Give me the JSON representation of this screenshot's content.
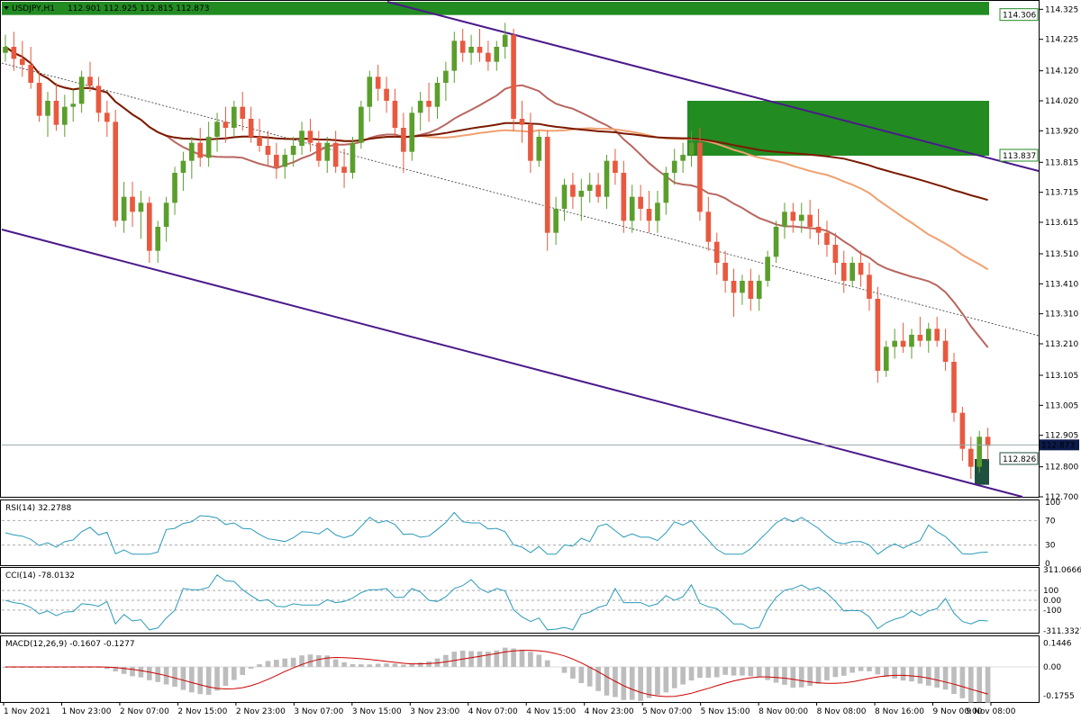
{
  "header": {
    "symbol": "USDJPY,H1",
    "ohlc": "112.901 112.925 112.815 112.873"
  },
  "colors": {
    "bull": "#5b9e2c",
    "bear": "#e8593f",
    "zone": "#228b22",
    "channel": "#4b1a8a",
    "ma_fast": "#b8665f",
    "ma_mid": "#f0a070",
    "ma_slow": "#7a1a00",
    "indicator": "#2a9ab8",
    "macd_signal": "#cc0000",
    "hist": "#bdbdbd"
  },
  "price_axis": {
    "ticks": [
      "114.325",
      "114.225",
      "114.120",
      "114.020",
      "113.920",
      "113.815",
      "113.715",
      "113.615",
      "113.510",
      "113.410",
      "113.310",
      "113.210",
      "113.105",
      "113.005",
      "112.905",
      "112.800",
      "112.700"
    ],
    "labels": {
      "zone_top": "114.306",
      "zone_mid": "113.837",
      "current": "112.873",
      "zone_low": "112.826"
    }
  },
  "x_axis": {
    "labels": [
      "1 Nov 2021",
      "1 Nov 23:00",
      "2 Nov 07:00",
      "2 Nov 15:00",
      "2 Nov 23:00",
      "3 Nov 07:00",
      "3 Nov 15:00",
      "3 Nov 23:00",
      "4 Nov 07:00",
      "4 Nov 15:00",
      "4 Nov 23:00",
      "5 Nov 07:00",
      "5 Nov 15:00",
      "8 Nov 00:00",
      "8 Nov 08:00",
      "8 Nov 16:00",
      "9 Nov 00:00",
      "9 Nov 08:00"
    ]
  },
  "rsi": {
    "label": "RSI(14) 32.2788",
    "levels": [
      "100",
      "70",
      "30",
      "0"
    ]
  },
  "cci": {
    "label": "CCI(14) -78.0132",
    "levels": [
      "311.0666",
      "100",
      "0.00",
      "-100",
      "-311.3327"
    ]
  },
  "macd": {
    "label": "MACD(12,26,9) -0.1607 -0.1277",
    "levels": [
      "0.1446",
      "0.00",
      "-0.1755"
    ]
  },
  "chart_data": {
    "type": "candlestick",
    "symbol": "USDJPY",
    "ylim": [
      112.7,
      114.35
    ],
    "candles": [
      [
        114.18,
        114.24,
        114.15,
        114.2
      ],
      [
        114.2,
        114.25,
        114.12,
        114.16
      ],
      [
        114.16,
        114.22,
        114.1,
        114.14
      ],
      [
        114.14,
        114.2,
        114.06,
        114.08
      ],
      [
        114.08,
        114.12,
        113.95,
        113.97
      ],
      [
        113.97,
        114.05,
        113.9,
        114.02
      ],
      [
        114.02,
        114.08,
        113.92,
        113.94
      ],
      [
        113.94,
        114.04,
        113.9,
        114.0
      ],
      [
        114.0,
        114.06,
        113.95,
        114.01
      ],
      [
        114.01,
        114.12,
        113.98,
        114.1
      ],
      [
        114.1,
        114.15,
        114.05,
        114.07
      ],
      [
        114.07,
        114.1,
        113.95,
        113.98
      ],
      [
        113.98,
        114.02,
        113.9,
        113.95
      ],
      [
        113.95,
        113.99,
        113.6,
        113.62
      ],
      [
        113.62,
        113.75,
        113.58,
        113.7
      ],
      [
        113.7,
        113.75,
        113.6,
        113.65
      ],
      [
        113.65,
        113.72,
        113.56,
        113.68
      ],
      [
        113.68,
        113.7,
        113.48,
        113.52
      ],
      [
        113.52,
        113.62,
        113.48,
        113.6
      ],
      [
        113.6,
        113.7,
        113.55,
        113.68
      ],
      [
        113.68,
        113.8,
        113.64,
        113.78
      ],
      [
        113.78,
        113.85,
        113.72,
        113.82
      ],
      [
        113.82,
        113.9,
        113.76,
        113.88
      ],
      [
        113.88,
        113.93,
        113.8,
        113.83
      ],
      [
        113.83,
        113.95,
        113.8,
        113.9
      ],
      [
        113.9,
        113.98,
        113.85,
        113.95
      ],
      [
        113.95,
        114.0,
        113.88,
        113.93
      ],
      [
        113.93,
        114.02,
        113.9,
        114.0
      ],
      [
        114.0,
        114.05,
        113.92,
        113.96
      ],
      [
        113.96,
        114.0,
        113.88,
        113.9
      ],
      [
        113.9,
        113.96,
        113.85,
        113.87
      ],
      [
        113.87,
        113.92,
        113.8,
        113.84
      ],
      [
        113.84,
        113.88,
        113.76,
        113.8
      ],
      [
        113.8,
        113.86,
        113.76,
        113.84
      ],
      [
        113.84,
        113.9,
        113.8,
        113.87
      ],
      [
        113.87,
        113.95,
        113.84,
        113.92
      ],
      [
        113.92,
        113.96,
        113.85,
        113.88
      ],
      [
        113.88,
        113.92,
        113.8,
        113.82
      ],
      [
        113.82,
        113.9,
        113.78,
        113.88
      ],
      [
        113.88,
        113.92,
        113.78,
        113.8
      ],
      [
        113.8,
        113.86,
        113.73,
        113.78
      ],
      [
        113.78,
        113.9,
        113.76,
        113.88
      ],
      [
        113.88,
        114.02,
        113.86,
        114.0
      ],
      [
        114.0,
        114.12,
        113.95,
        114.1
      ],
      [
        114.1,
        114.14,
        114.02,
        114.06
      ],
      [
        114.06,
        114.1,
        113.98,
        114.02
      ],
      [
        114.02,
        114.06,
        113.9,
        113.93
      ],
      [
        113.93,
        113.98,
        113.78,
        113.85
      ],
      [
        113.85,
        114.0,
        113.82,
        113.98
      ],
      [
        113.98,
        114.05,
        113.92,
        114.02
      ],
      [
        114.02,
        114.08,
        113.95,
        114.0
      ],
      [
        114.0,
        114.1,
        113.96,
        114.08
      ],
      [
        114.08,
        114.15,
        114.02,
        114.12
      ],
      [
        114.12,
        114.25,
        114.08,
        114.22
      ],
      [
        114.22,
        114.26,
        114.15,
        114.18
      ],
      [
        114.18,
        114.24,
        114.14,
        114.2
      ],
      [
        114.2,
        114.26,
        114.15,
        114.18
      ],
      [
        114.18,
        114.22,
        114.12,
        114.15
      ],
      [
        114.15,
        114.22,
        114.12,
        114.2
      ],
      [
        114.2,
        114.28,
        114.16,
        114.24
      ],
      [
        114.24,
        114.26,
        113.92,
        113.96
      ],
      [
        113.96,
        114.02,
        113.88,
        113.94
      ],
      [
        113.94,
        113.98,
        113.78,
        113.82
      ],
      [
        113.82,
        113.92,
        113.8,
        113.9
      ],
      [
        113.9,
        113.92,
        113.52,
        113.58
      ],
      [
        113.58,
        113.7,
        113.54,
        113.66
      ],
      [
        113.66,
        113.76,
        113.62,
        113.74
      ],
      [
        113.74,
        113.78,
        113.66,
        113.7
      ],
      [
        113.7,
        113.76,
        113.62,
        113.72
      ],
      [
        113.72,
        113.78,
        113.68,
        113.74
      ],
      [
        113.74,
        113.78,
        113.68,
        113.7
      ],
      [
        113.7,
        113.84,
        113.66,
        113.82
      ],
      [
        113.82,
        113.86,
        113.74,
        113.78
      ],
      [
        113.78,
        113.82,
        113.58,
        113.62
      ],
      [
        113.62,
        113.74,
        113.58,
        113.7
      ],
      [
        113.7,
        113.74,
        113.62,
        113.66
      ],
      [
        113.66,
        113.72,
        113.58,
        113.62
      ],
      [
        113.62,
        113.72,
        113.58,
        113.68
      ],
      [
        113.68,
        113.8,
        113.64,
        113.78
      ],
      [
        113.78,
        113.86,
        113.74,
        113.82
      ],
      [
        113.82,
        113.88,
        113.78,
        113.84
      ],
      [
        113.84,
        113.92,
        113.8,
        113.88
      ],
      [
        113.88,
        113.93,
        113.62,
        113.65
      ],
      [
        113.65,
        113.7,
        113.52,
        113.55
      ],
      [
        113.55,
        113.58,
        113.44,
        113.48
      ],
      [
        113.48,
        113.52,
        113.38,
        113.42
      ],
      [
        113.42,
        113.46,
        113.3,
        113.38
      ],
      [
        113.38,
        113.44,
        113.34,
        113.42
      ],
      [
        113.42,
        113.46,
        113.32,
        113.36
      ],
      [
        113.36,
        113.44,
        113.32,
        113.42
      ],
      [
        113.42,
        113.52,
        113.4,
        113.5
      ],
      [
        113.5,
        113.62,
        113.48,
        113.6
      ],
      [
        113.6,
        113.68,
        113.56,
        113.65
      ],
      [
        113.65,
        113.68,
        113.58,
        113.62
      ],
      [
        113.62,
        113.68,
        113.58,
        113.64
      ],
      [
        113.64,
        113.69,
        113.56,
        113.6
      ],
      [
        113.6,
        113.66,
        113.54,
        113.58
      ],
      [
        113.58,
        113.62,
        113.5,
        113.54
      ],
      [
        113.54,
        113.58,
        113.44,
        113.48
      ],
      [
        113.48,
        113.52,
        113.38,
        113.42
      ],
      [
        113.42,
        113.5,
        113.4,
        113.48
      ],
      [
        113.48,
        113.52,
        113.4,
        113.44
      ],
      [
        113.44,
        113.48,
        113.32,
        113.36
      ],
      [
        113.36,
        113.4,
        113.08,
        113.12
      ],
      [
        113.12,
        113.22,
        113.1,
        113.2
      ],
      [
        113.2,
        113.26,
        113.16,
        113.22
      ],
      [
        113.22,
        113.28,
        113.18,
        113.2
      ],
      [
        113.2,
        113.26,
        113.16,
        113.24
      ],
      [
        113.24,
        113.3,
        113.2,
        113.22
      ],
      [
        113.22,
        113.28,
        113.18,
        113.26
      ],
      [
        113.26,
        113.3,
        113.2,
        113.22
      ],
      [
        113.22,
        113.26,
        113.12,
        113.15
      ],
      [
        113.15,
        113.18,
        112.95,
        112.98
      ],
      [
        112.98,
        113.0,
        112.82,
        112.86
      ],
      [
        112.86,
        112.9,
        112.76,
        112.8
      ],
      [
        112.8,
        112.92,
        112.78,
        112.9
      ],
      [
        112.9,
        112.93,
        112.82,
        112.87
      ]
    ],
    "zones": [
      {
        "from": 114.306,
        "to": 114.35
      },
      {
        "from": 113.837,
        "to": 114.02
      },
      {
        "from": 112.74,
        "to": 112.826
      }
    ],
    "current_price": 112.873
  }
}
